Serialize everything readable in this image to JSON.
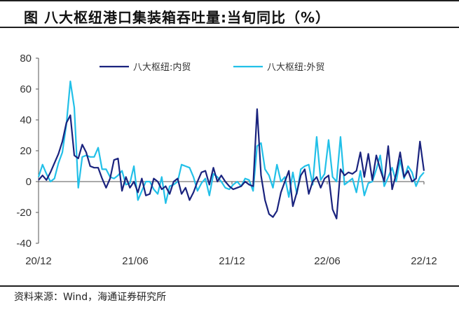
{
  "title": "图   八大枢纽港口集装箱吞吐量:当旬同比（%）",
  "source": "资料来源：Wind，海通证券研究所",
  "chart_data": {
    "type": "line",
    "title": "图   八大枢纽港口集装箱吞吐量:当旬同比（%）",
    "xlabel": "",
    "ylabel": "",
    "ylim": [
      -40,
      80
    ],
    "yticks": [
      80,
      60,
      40,
      20,
      0,
      -20,
      -40
    ],
    "x_tick_labels": [
      "20/12",
      "21/06",
      "21/12",
      "22/06",
      "22/12"
    ],
    "legend_position": "top",
    "grid": false,
    "series": [
      {
        "name": "八大枢纽:内贸",
        "color": "#1a237e",
        "values": [
          1,
          4,
          1,
          6,
          12,
          18,
          26,
          38,
          43,
          17,
          15,
          24,
          19,
          10,
          9,
          9,
          2,
          -4,
          2,
          14,
          15,
          -6,
          3,
          -4,
          0,
          -7,
          2,
          -9,
          -8,
          2,
          0,
          -5,
          -3,
          -8,
          0,
          2,
          -8,
          -4,
          -12,
          -7,
          0,
          6,
          7,
          -2,
          9,
          0,
          4,
          0,
          -3,
          -5,
          -4,
          -3,
          0,
          -2,
          -3,
          47,
          4,
          -12,
          -21,
          -23,
          -19,
          -7,
          0,
          7,
          -16,
          -7,
          4,
          8,
          -8,
          0,
          3,
          -4,
          2,
          4,
          -18,
          -24,
          8,
          4,
          6,
          5,
          7,
          19,
          3,
          18,
          1,
          17,
          8,
          0,
          23,
          -5,
          5,
          19,
          3,
          7,
          0,
          2,
          26,
          7
        ],
        "description_pattern": ""
      },
      {
        "name": "八大枢纽:外贸",
        "color": "#22c0e8",
        "values": [
          3,
          11,
          5,
          0,
          2,
          12,
          19,
          37,
          65,
          48,
          -4,
          16,
          17,
          16,
          16,
          22,
          8,
          8,
          3,
          2,
          4,
          7,
          -2,
          -1,
          10,
          -12,
          -6,
          0,
          0,
          -5,
          -8,
          3,
          -14,
          -3,
          -2,
          0,
          11,
          10,
          9,
          3,
          -6,
          -1,
          2,
          -9,
          5,
          3,
          0,
          -4,
          -5,
          -2,
          0,
          -3,
          2,
          1,
          -6,
          23,
          25,
          8,
          4,
          -4,
          11,
          0,
          3,
          -10,
          6,
          -8,
          8,
          10,
          11,
          -2,
          29,
          1,
          5,
          27,
          3,
          0,
          29,
          -2,
          0,
          2,
          -7,
          7,
          -9,
          -1,
          0,
          8,
          17,
          -3,
          3,
          9,
          0,
          14,
          2,
          10,
          6,
          -3,
          3,
          6
        ]
      }
    ]
  }
}
